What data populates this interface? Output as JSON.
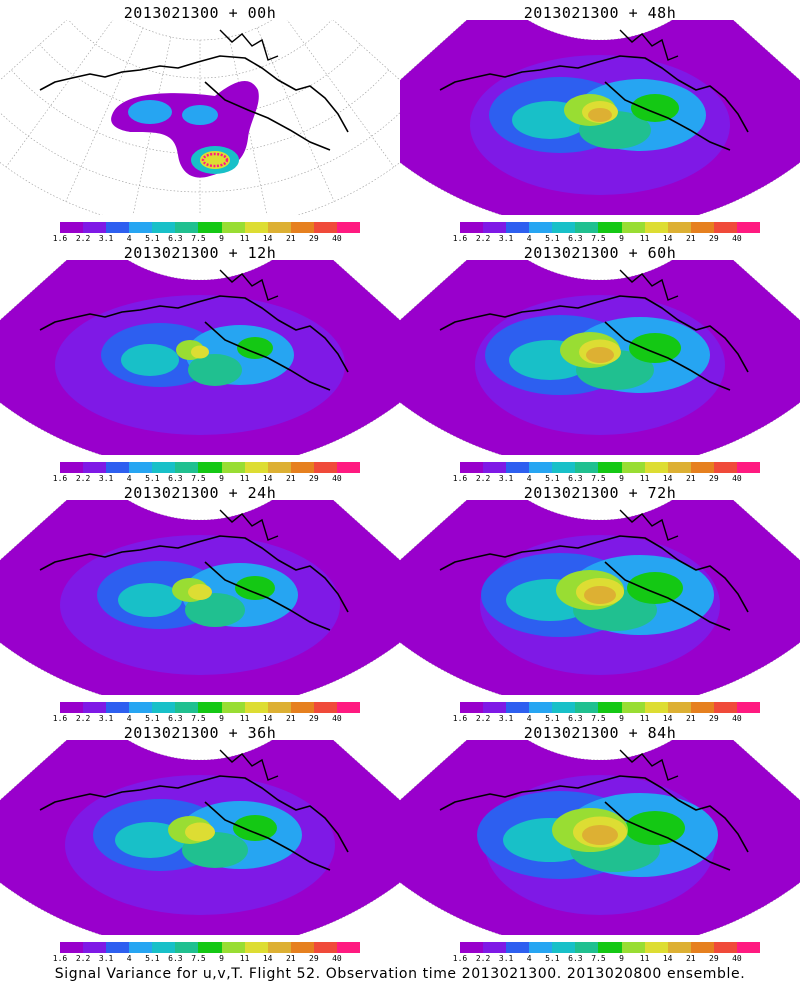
{
  "colors": [
    "#9900cc",
    "#7f19e6",
    "#2d5ff0",
    "#26a5f2",
    "#18c0c8",
    "#20c090",
    "#14c814",
    "#99dd33",
    "#dddd33",
    "#ddb033",
    "#e6801f",
    "#f04a3a",
    "#ff1a80"
  ],
  "scale_labels": [
    "1.6",
    "2.2",
    "3.1",
    "4",
    "5.1",
    "6.3",
    "7.5",
    "9",
    "11",
    "14",
    "21",
    "29",
    "40"
  ],
  "footer": "Signal Variance for u,v,T. Flight 52. Observation time 2013021300. 2013020800 ensemble.",
  "chart_data": [
    {
      "type": "heatmap",
      "title": "2013021300 + 00h",
      "lead_hours": 0
    },
    {
      "type": "heatmap",
      "title": "2013021300 + 48h",
      "lead_hours": 48
    },
    {
      "type": "heatmap",
      "title": "2013021300 + 12h",
      "lead_hours": 12
    },
    {
      "type": "heatmap",
      "title": "2013021300 + 60h",
      "lead_hours": 60
    },
    {
      "type": "heatmap",
      "title": "2013021300 + 24h",
      "lead_hours": 24
    },
    {
      "type": "heatmap",
      "title": "2013021300 + 72h",
      "lead_hours": 72
    },
    {
      "type": "heatmap",
      "title": "2013021300 + 36h",
      "lead_hours": 36
    },
    {
      "type": "heatmap",
      "title": "2013021300 + 84h",
      "lead_hours": 84
    }
  ]
}
